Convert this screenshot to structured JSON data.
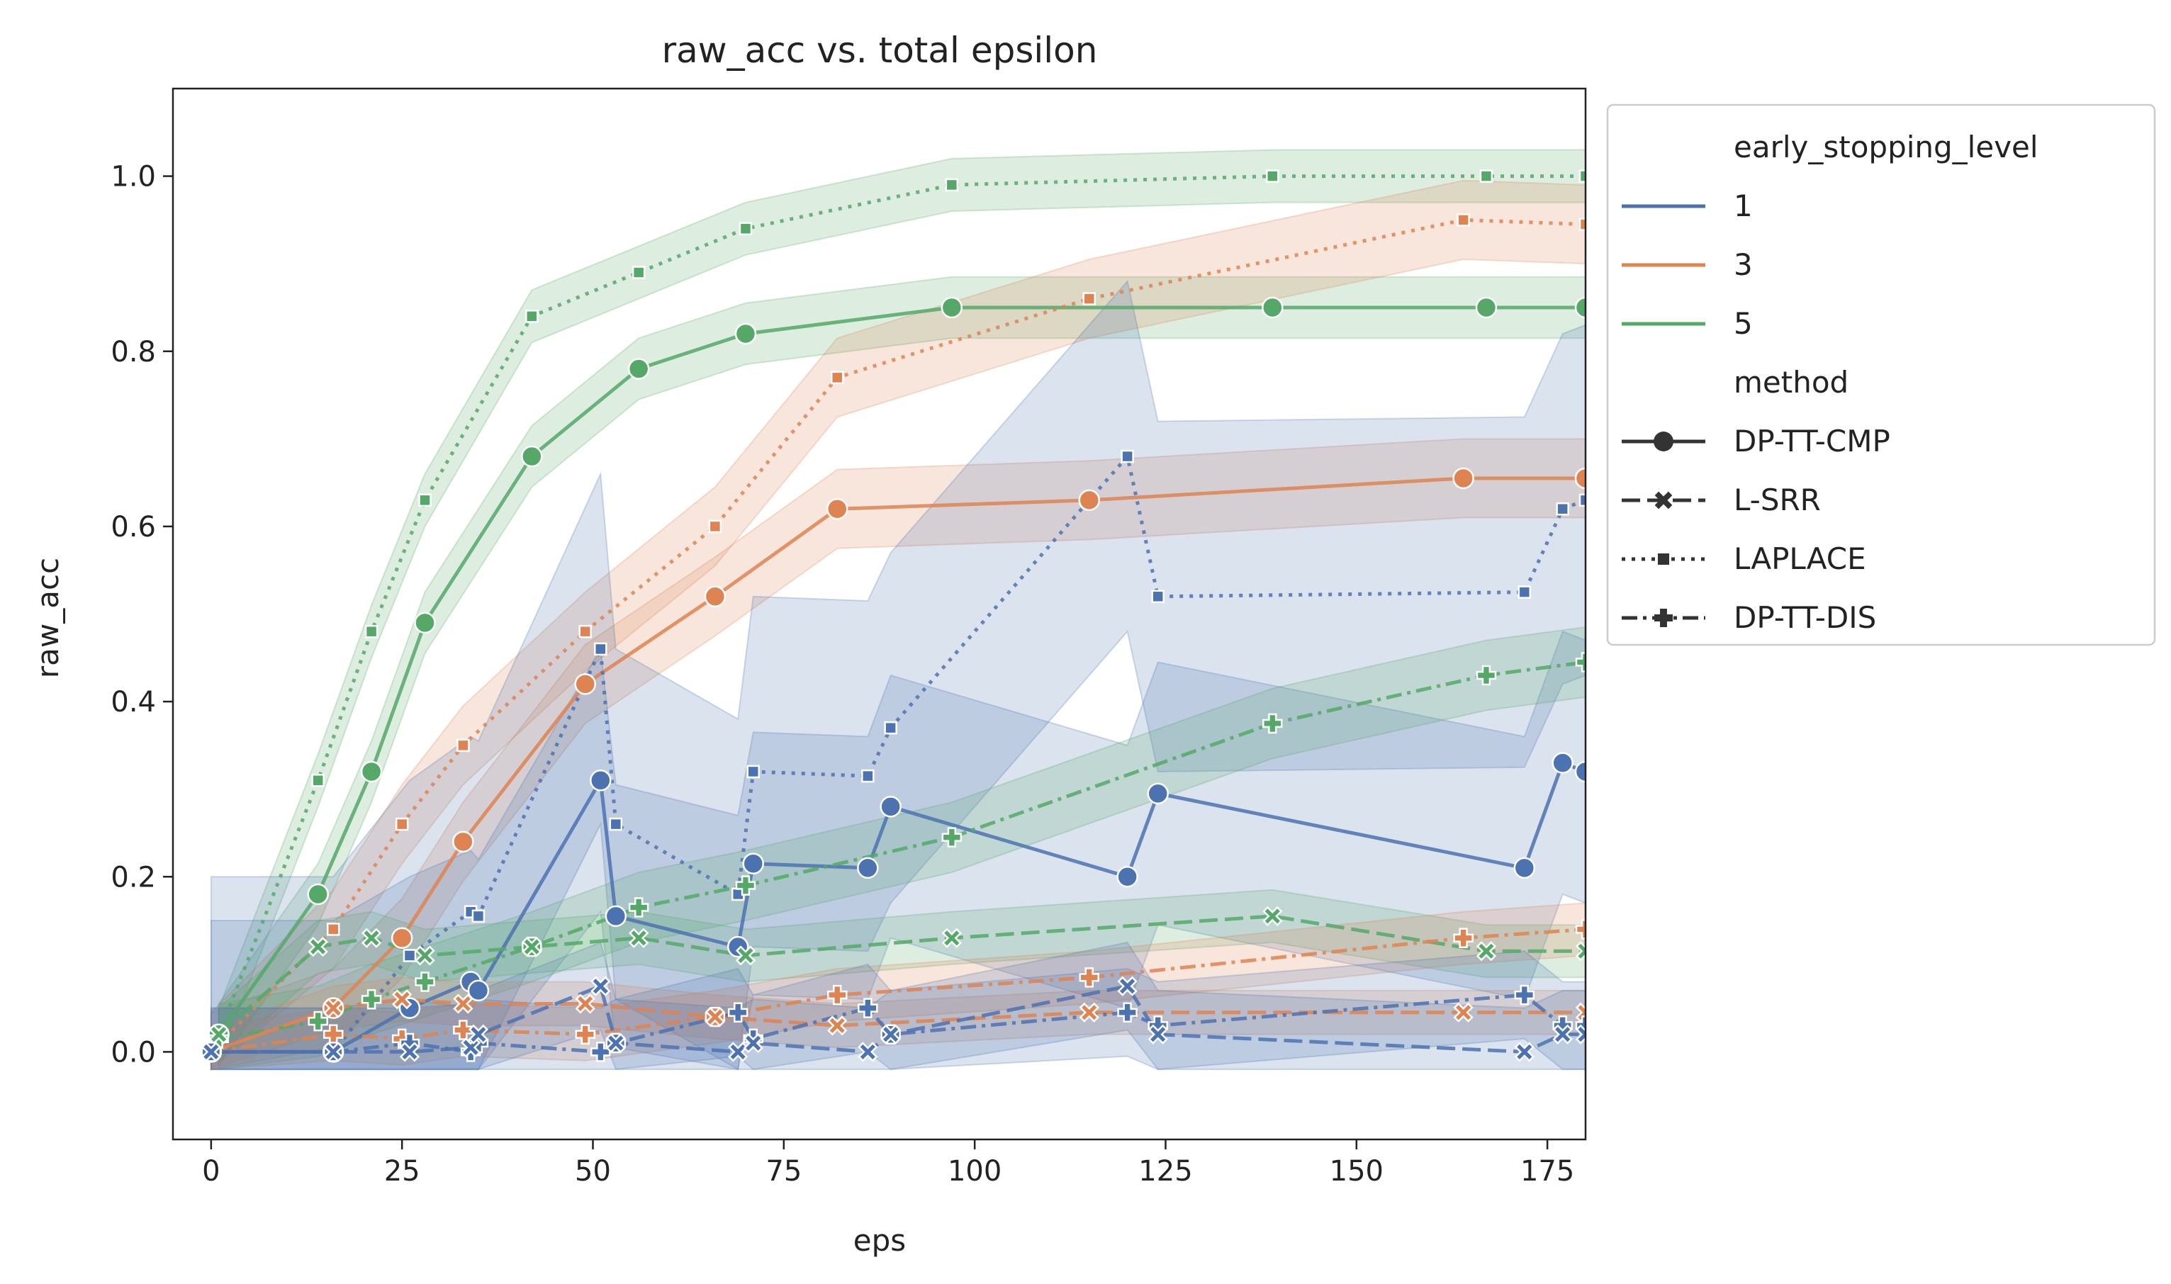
{
  "chart_data": {
    "type": "line",
    "title": "raw_acc vs. total epsilon",
    "xlabel": "eps",
    "ylabel": "raw_acc",
    "xlim": [
      -5,
      180
    ],
    "ylim": [
      -0.1,
      1.1
    ],
    "xticks": [
      0,
      25,
      50,
      75,
      100,
      125,
      150,
      175
    ],
    "yticks": [
      0.0,
      0.2,
      0.4,
      0.6,
      0.8,
      1.0
    ],
    "yticklabels": [
      "0.0",
      "0.2",
      "0.4",
      "0.6",
      "0.8",
      "1.0"
    ],
    "grid": false,
    "legend": {
      "placement": "outside-right",
      "hue_title": "early_stopping_level",
      "hue_items": [
        {
          "label": "1",
          "color": "#4c72b0"
        },
        {
          "label": "3",
          "color": "#dd8452"
        },
        {
          "label": "5",
          "color": "#55a868"
        }
      ],
      "style_title": "method",
      "style_items": [
        {
          "label": "DP-TT-CMP",
          "marker": "circle",
          "dash": "solid"
        },
        {
          "label": "L-SRR",
          "marker": "x",
          "dash": "dashed"
        },
        {
          "label": "LAPLACE",
          "marker": "square",
          "dash": "dotted"
        },
        {
          "label": "DP-TT-DIS",
          "marker": "plus",
          "dash": "dashdot"
        }
      ]
    },
    "series": [
      {
        "level": "5",
        "method": "LAPLACE",
        "color": "#55a868",
        "x": [
          1,
          14,
          21,
          28,
          42,
          56,
          70,
          97,
          139,
          167,
          180
        ],
        "y": [
          0.02,
          0.31,
          0.48,
          0.63,
          0.84,
          0.89,
          0.94,
          0.99,
          1.0,
          1.0,
          1.0
        ],
        "band": 0.03
      },
      {
        "level": "5",
        "method": "DP-TT-CMP",
        "color": "#55a868",
        "x": [
          1,
          14,
          21,
          28,
          42,
          56,
          70,
          97,
          139,
          167,
          180
        ],
        "y": [
          0.02,
          0.18,
          0.32,
          0.49,
          0.68,
          0.78,
          0.82,
          0.85,
          0.85,
          0.85,
          0.85
        ],
        "band": 0.035
      },
      {
        "level": "3",
        "method": "LAPLACE",
        "color": "#dd8452",
        "x": [
          0,
          16,
          25,
          33,
          49,
          66,
          82,
          115,
          164,
          180
        ],
        "y": [
          0.0,
          0.14,
          0.26,
          0.35,
          0.48,
          0.6,
          0.77,
          0.86,
          0.95,
          0.945
        ],
        "band": 0.045
      },
      {
        "level": "3",
        "method": "DP-TT-CMP",
        "color": "#dd8452",
        "x": [
          0,
          16,
          25,
          33,
          49,
          66,
          82,
          115,
          164,
          180
        ],
        "y": [
          0.0,
          0.05,
          0.13,
          0.24,
          0.42,
          0.52,
          0.62,
          0.63,
          0.655,
          0.655
        ],
        "band": 0.045
      },
      {
        "level": "1",
        "method": "LAPLACE",
        "color": "#4c72b0",
        "x": [
          0,
          16,
          26,
          34,
          35,
          51,
          53,
          69,
          71,
          86,
          89,
          120,
          124,
          172,
          177,
          180
        ],
        "y": [
          0.0,
          0.0,
          0.11,
          0.16,
          0.155,
          0.46,
          0.26,
          0.18,
          0.32,
          0.315,
          0.37,
          0.68,
          0.52,
          0.525,
          0.62,
          0.63
        ],
        "band": 0.2
      },
      {
        "level": "1",
        "method": "DP-TT-CMP",
        "color": "#4c72b0",
        "x": [
          0,
          16,
          26,
          34,
          35,
          51,
          53,
          69,
          71,
          86,
          89,
          120,
          124,
          172,
          177,
          180
        ],
        "y": [
          0.0,
          0.0,
          0.05,
          0.08,
          0.07,
          0.31,
          0.155,
          0.12,
          0.215,
          0.21,
          0.28,
          0.2,
          0.295,
          0.21,
          0.33,
          0.32
        ],
        "band": 0.15
      },
      {
        "level": "5",
        "method": "DP-TT-DIS",
        "color": "#55a868",
        "x": [
          1,
          14,
          21,
          28,
          42,
          56,
          70,
          97,
          139,
          167,
          180
        ],
        "y": [
          0.015,
          0.035,
          0.06,
          0.08,
          0.12,
          0.165,
          0.19,
          0.245,
          0.375,
          0.43,
          0.445
        ],
        "band": 0.04
      },
      {
        "level": "5",
        "method": "L-SRR",
        "color": "#55a868",
        "x": [
          1,
          14,
          21,
          28,
          42,
          56,
          70,
          97,
          139,
          167,
          180
        ],
        "y": [
          0.02,
          0.12,
          0.13,
          0.11,
          0.12,
          0.13,
          0.11,
          0.13,
          0.155,
          0.115,
          0.115
        ],
        "band": 0.03
      },
      {
        "level": "3",
        "method": "DP-TT-DIS",
        "color": "#dd8452",
        "x": [
          0,
          16,
          25,
          33,
          49,
          66,
          82,
          115,
          164,
          180
        ],
        "y": [
          0.0,
          0.02,
          0.015,
          0.025,
          0.02,
          0.04,
          0.065,
          0.085,
          0.13,
          0.14
        ],
        "band": 0.03
      },
      {
        "level": "3",
        "method": "L-SRR",
        "color": "#dd8452",
        "x": [
          0,
          16,
          25,
          33,
          49,
          66,
          82,
          115,
          164,
          180
        ],
        "y": [
          0.0,
          0.05,
          0.06,
          0.055,
          0.055,
          0.04,
          0.03,
          0.045,
          0.045,
          0.045
        ],
        "band": 0.025
      },
      {
        "level": "1",
        "method": "DP-TT-DIS",
        "color": "#4c72b0",
        "x": [
          0,
          16,
          26,
          34,
          35,
          51,
          53,
          69,
          71,
          86,
          89,
          120,
          124,
          172,
          177,
          180
        ],
        "y": [
          0.0,
          0.0,
          0.01,
          0.0,
          0.01,
          0.0,
          0.01,
          0.045,
          0.015,
          0.05,
          0.02,
          0.045,
          0.03,
          0.065,
          0.03,
          0.03
        ],
        "band": 0.05
      },
      {
        "level": "1",
        "method": "L-SRR",
        "color": "#4c72b0",
        "x": [
          0,
          16,
          26,
          34,
          35,
          51,
          53,
          69,
          71,
          86,
          89,
          120,
          124,
          172,
          177,
          180
        ],
        "y": [
          0.0,
          0.0,
          0.0,
          0.005,
          0.02,
          0.075,
          0.01,
          0.0,
          0.01,
          0.0,
          0.02,
          0.075,
          0.02,
          0.0,
          0.02,
          0.02
        ],
        "band": 0.05
      }
    ]
  }
}
